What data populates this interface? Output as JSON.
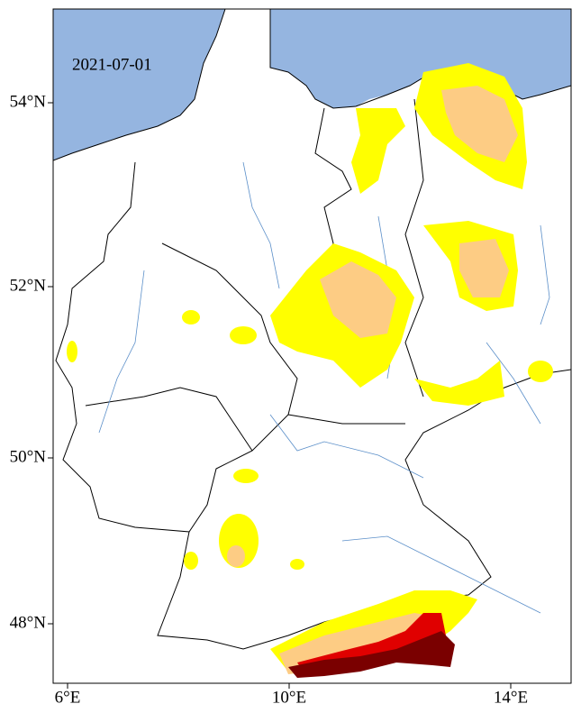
{
  "map": {
    "date": "2021-07-01",
    "lat_labels": [
      "54°N",
      "52°N",
      "50°N",
      "48°N"
    ],
    "lon_labels": [
      "6°E",
      "10°E",
      "14°E"
    ]
  }
}
